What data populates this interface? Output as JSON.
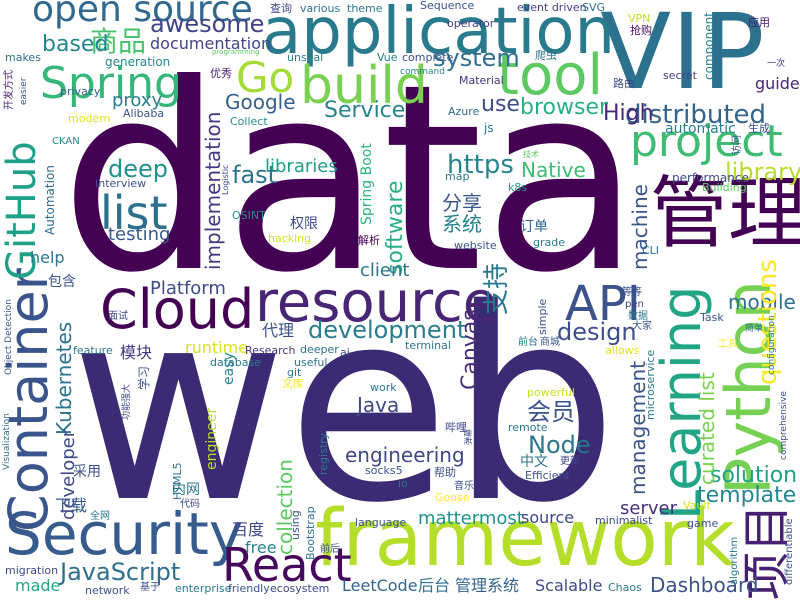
{
  "words": [
    {
      "t": "data",
      "c": "#440154"
    },
    {
      "t": "web",
      "c": "#3b2b74"
    },
    {
      "t": "VIP",
      "c": "#2c728e"
    },
    {
      "t": "application",
      "c": "#2a7a8e"
    },
    {
      "t": "open source",
      "c": "#31688e"
    },
    {
      "t": "framework",
      "c": "#b5de2b"
    },
    {
      "t": "管理",
      "c": "#440154"
    },
    {
      "t": "Security",
      "c": "#365c8d"
    },
    {
      "t": "Container",
      "c": "#3a558c"
    },
    {
      "t": "Cloud",
      "c": "#440154"
    },
    {
      "t": "resource",
      "c": "#482575"
    },
    {
      "t": "Learning",
      "c": "#21a585"
    },
    {
      "t": "Python",
      "c": "#75d054"
    },
    {
      "t": "项目",
      "c": "#482071"
    },
    {
      "t": "tool",
      "c": "#5ec962"
    },
    {
      "t": "Spring",
      "c": "#35b779"
    },
    {
      "t": "build",
      "c": "#7ad151"
    },
    {
      "t": "project",
      "c": "#3fbc73"
    },
    {
      "t": "GitHub",
      "c": "#1fa088"
    },
    {
      "t": "Go",
      "c": "#a5db36"
    },
    {
      "t": "React",
      "c": "#46085c"
    },
    {
      "t": "API",
      "c": "#3b528b"
    },
    {
      "t": "list",
      "c": "#2d708e"
    },
    {
      "t": "商品",
      "c": "#4ac16d"
    },
    {
      "t": "awesome",
      "c": "#414487"
    },
    {
      "t": "based",
      "c": "#24868e"
    },
    {
      "t": "system",
      "c": "#2e6e8e"
    },
    {
      "t": "documentation",
      "c": "#414487"
    },
    {
      "t": "Google",
      "c": "#355f8d"
    },
    {
      "t": "browser",
      "c": "#2ab07f"
    },
    {
      "t": "distributed",
      "c": "#32648e"
    },
    {
      "t": "High",
      "c": "#482878"
    },
    {
      "t": "use",
      "c": "#3e4a89"
    },
    {
      "t": "Service",
      "c": "#26828e"
    },
    {
      "t": "library",
      "c": "#b5de2b"
    },
    {
      "t": "deep",
      "c": "#21918c"
    },
    {
      "t": "fast",
      "c": "#2c728e"
    },
    {
      "t": "libraries",
      "c": "#1f9e89"
    },
    {
      "t": "https",
      "c": "#25858e"
    },
    {
      "t": "Native",
      "c": "#3dbc74"
    },
    {
      "t": "testing",
      "c": "#38588c"
    },
    {
      "t": "implementation",
      "c": "#453781"
    },
    {
      "t": "software",
      "c": "#29af7f"
    },
    {
      "t": "分享",
      "c": "#38588c"
    },
    {
      "t": "系统",
      "c": "#26828e"
    },
    {
      "t": "支持",
      "c": "#2a778e"
    },
    {
      "t": "machine",
      "c": "#3a548c"
    },
    {
      "t": "mobile",
      "c": "#2d708e"
    },
    {
      "t": "development",
      "c": "#287d8e"
    },
    {
      "t": "design",
      "c": "#3d4d8a"
    },
    {
      "t": "questions",
      "c": "#fde725"
    },
    {
      "t": "template",
      "c": "#24868e"
    },
    {
      "t": "solution",
      "c": "#1fa187"
    },
    {
      "t": "curated list",
      "c": "#7ad151"
    },
    {
      "t": "management",
      "c": "#3b528b"
    },
    {
      "t": "Canvas",
      "c": "#472d7b"
    },
    {
      "t": "Java",
      "c": "#3e4989"
    },
    {
      "t": "Kubernetes",
      "c": "#2c738e"
    },
    {
      "t": "JavaScript",
      "c": "#2e6f8e"
    },
    {
      "t": "Dashboard",
      "c": "#3b528b"
    },
    {
      "t": "engineering",
      "c": "#3f4788"
    },
    {
      "t": "Node",
      "c": "#2b758e"
    },
    {
      "t": "会员",
      "c": "#3b528b"
    },
    {
      "t": "mattermost",
      "c": "#20928c"
    },
    {
      "t": "source",
      "c": "#3e4989"
    },
    {
      "t": "LeetCode",
      "c": "#31678e"
    },
    {
      "t": "后台",
      "c": "#2e6e8e"
    },
    {
      "t": "管理系统",
      "c": "#33638d"
    },
    {
      "t": "Scalable",
      "c": "#3e4a89"
    },
    {
      "t": "server",
      "c": "#472f7d"
    },
    {
      "t": "Platform",
      "c": "#3e4989"
    },
    {
      "t": "proxy",
      "c": "#287d8e"
    },
    {
      "t": "client",
      "c": "#2b748e"
    },
    {
      "t": "collection",
      "c": "#5ec962"
    },
    {
      "t": "百度",
      "c": "#3f4889"
    },
    {
      "t": "free",
      "c": "#24868e"
    },
    {
      "t": "made",
      "c": "#22a884"
    },
    {
      "t": "代理",
      "c": "#3b528b"
    },
    {
      "t": "模块",
      "c": "#453882"
    },
    {
      "t": "runtime",
      "c": "#d8e219"
    },
    {
      "t": "help",
      "c": "#2a778e"
    },
    {
      "t": "developer",
      "c": "#3e4a89"
    },
    {
      "t": "下载",
      "c": "#38598c"
    },
    {
      "t": "engineer",
      "c": "#bddf26"
    },
    {
      "t": "generation",
      "c": "#24878e"
    },
    {
      "t": "unseal",
      "c": "#2a788e"
    },
    {
      "t": "Automation",
      "c": "#2f6b8e"
    },
    {
      "t": "Spring Boot",
      "c": "#2db27d"
    },
    {
      "t": "Research",
      "c": "#46327e"
    },
    {
      "t": "deeper",
      "c": "#2c718e"
    },
    {
      "t": "easy",
      "c": "#23898e"
    },
    {
      "t": "权限",
      "c": "#3e4989"
    },
    {
      "t": "hacking",
      "c": "#d2e21b"
    },
    {
      "t": "解析",
      "c": "#440154"
    },
    {
      "t": "订单",
      "c": "#31668e"
    },
    {
      "t": "k8s",
      "c": "#1fa188"
    },
    {
      "t": "grade",
      "c": "#287d8e"
    },
    {
      "t": "CLI",
      "c": "#2a768e"
    },
    {
      "t": "performance",
      "c": "#3e4989"
    },
    {
      "t": "Building",
      "c": "#5ec962"
    },
    {
      "t": "automatic",
      "c": "#27808e"
    },
    {
      "t": "component",
      "c": "#27808e"
    },
    {
      "t": "guide",
      "c": "#482576"
    },
    {
      "t": "secret",
      "c": "#433e85"
    },
    {
      "t": "路由",
      "c": "#3e4989"
    },
    {
      "t": "生成",
      "c": "#3e4989"
    },
    {
      "t": "访问",
      "c": "#3b528b"
    },
    {
      "t": "Azure",
      "c": "#2e6e8e"
    },
    {
      "t": "js",
      "c": "#2a788e"
    },
    {
      "t": "operator",
      "c": "#433e85"
    },
    {
      "t": "event driven",
      "c": "#433e85"
    },
    {
      "t": "SVG",
      "c": "#2c728e"
    },
    {
      "t": "Sequence",
      "c": "#3b528b"
    },
    {
      "t": "theme",
      "c": "#2a778e"
    },
    {
      "t": "various",
      "c": "#2c738e"
    },
    {
      "t": "查询",
      "c": "#3f4788"
    },
    {
      "t": "VPN",
      "c": "#bddf26"
    },
    {
      "t": "应用",
      "c": "#48186a"
    },
    {
      "t": "抢购",
      "c": "#46085c"
    },
    {
      "t": "一次",
      "c": "#433e85"
    },
    {
      "t": "Vue",
      "c": "#277f8e"
    },
    {
      "t": "complete",
      "c": "#3b528b"
    },
    {
      "t": "爬虫",
      "c": "#2c728e"
    },
    {
      "t": "command",
      "c": "#24868e"
    },
    {
      "t": "Material",
      "c": "#46327e"
    },
    {
      "t": "makes",
      "c": "#2c718e"
    },
    {
      "t": "privacy",
      "c": "#33638d"
    },
    {
      "t": "modern",
      "c": "#dde318"
    },
    {
      "t": "优秀",
      "c": "#482172"
    },
    {
      "t": "Alibaba",
      "c": "#3b528b"
    },
    {
      "t": "Collect",
      "c": "#21918c"
    },
    {
      "t": "技术",
      "c": "#5ec962"
    },
    {
      "t": "map",
      "c": "#2a788e"
    },
    {
      "t": "website",
      "c": "#3b528b"
    },
    {
      "t": "CKAN",
      "c": "#25858e"
    },
    {
      "t": "Interview",
      "c": "#3b528b"
    },
    {
      "t": "OSINT",
      "c": "#21918c"
    },
    {
      "t": "Logistic",
      "c": "#3e4989"
    },
    {
      "t": "programming",
      "c": "#5ec962"
    },
    {
      "t": "easier",
      "c": "#3b528b"
    },
    {
      "t": "开发方式",
      "c": "#482576"
    },
    {
      "t": "包含",
      "c": "#3b528b"
    },
    {
      "t": "Object Detection",
      "c": "#3b528b"
    },
    {
      "t": "面试",
      "c": "#3e4989"
    },
    {
      "t": "feature",
      "c": "#2a788e"
    },
    {
      "t": "学习",
      "c": "#3b528b"
    },
    {
      "t": "功能强大",
      "c": "#3e4989"
    },
    {
      "t": "database",
      "c": "#2a788e"
    },
    {
      "t": "useful",
      "c": "#2c728e"
    },
    {
      "t": "ai",
      "c": "#3b528b"
    },
    {
      "t": "git",
      "c": "#2a788e"
    },
    {
      "t": "文库",
      "c": "#fde725"
    },
    {
      "t": "work",
      "c": "#2a788e"
    },
    {
      "t": "powerful",
      "c": "#c8e020"
    },
    {
      "t": "哔哩",
      "c": "#3e4989"
    },
    {
      "t": "remote",
      "c": "#2a788e"
    },
    {
      "t": "弹幕",
      "c": "#3e4989"
    },
    {
      "t": "帮助",
      "c": "#3b528b"
    },
    {
      "t": "中文",
      "c": "#2c728e"
    },
    {
      "t": "更新",
      "c": "#3e4989"
    },
    {
      "t": "Visualization",
      "c": "#2c728e"
    },
    {
      "t": "HTML5",
      "c": "#2c728e"
    },
    {
      "t": "registry",
      "c": "#2a788e"
    },
    {
      "t": "socks5",
      "c": "#3b528b"
    },
    {
      "t": "io",
      "c": "#2a788e"
    },
    {
      "t": "音乐",
      "c": "#3b528b"
    },
    {
      "t": "Efficient",
      "c": "#3b528b"
    },
    {
      "t": "采用",
      "c": "#3b528b"
    },
    {
      "t": "内网",
      "c": "#2a788e"
    },
    {
      "t": "代码",
      "c": "#3e4989"
    },
    {
      "t": "全网",
      "c": "#2a788e"
    },
    {
      "t": "Bootstrap",
      "c": "#2c728e"
    },
    {
      "t": "using",
      "c": "#3b528b"
    },
    {
      "t": "前后",
      "c": "#3b528b"
    },
    {
      "t": "Goose",
      "c": "#fde725"
    },
    {
      "t": "migration",
      "c": "#3e4989"
    },
    {
      "t": "language",
      "c": "#3b528b"
    },
    {
      "t": "enterprise",
      "c": "#2a788e"
    },
    {
      "t": "friendly",
      "c": "#3b528b"
    },
    {
      "t": "ecosystem",
      "c": "#3e4989"
    },
    {
      "t": "基于",
      "c": "#3b528b"
    },
    {
      "t": "network",
      "c": "#3b528b"
    },
    {
      "t": "minimalist",
      "c": "#3e4989"
    },
    {
      "t": "Chaos",
      "c": "#2a788e"
    },
    {
      "t": "game",
      "c": "#3b528b"
    },
    {
      "t": "algorithm",
      "c": "#2a788e"
    },
    {
      "t": "Vault",
      "c": "#d2e21b"
    },
    {
      "t": "differentiable",
      "c": "#3b528b"
    },
    {
      "t": "comprehensive",
      "c": "#3e4989"
    },
    {
      "t": "microservice",
      "c": "#2a788e"
    },
    {
      "t": "allows",
      "c": "#dde318"
    },
    {
      "t": "configuration",
      "c": "#2a788e"
    },
    {
      "t": "Task",
      "c": "#3b528b"
    },
    {
      "t": "简单",
      "c": "#2c728e"
    },
    {
      "t": "工具",
      "c": "#fde725"
    },
    {
      "t": "等等",
      "c": "#3b528b"
    },
    {
      "t": "pen",
      "c": "#3e4989"
    },
    {
      "t": "大家",
      "c": "#3b528b"
    },
    {
      "t": "数据",
      "c": "#2a788e"
    },
    {
      "t": "商城",
      "c": "#3b528b"
    },
    {
      "t": "前台",
      "c": "#2a788e"
    },
    {
      "t": "terminal",
      "c": "#2c728e"
    },
    {
      "t": "simple",
      "c": "#3b528b"
    }
  ]
}
